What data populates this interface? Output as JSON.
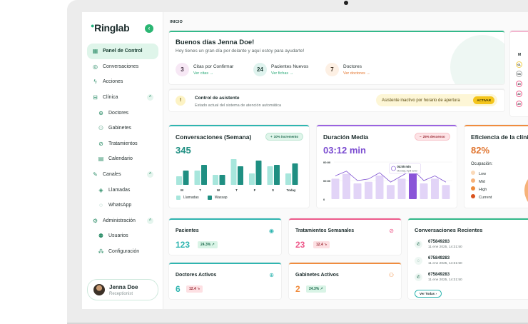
{
  "app": {
    "logo": "Ringlab"
  },
  "breadcrumb": "INICIO",
  "sidebar": {
    "items": [
      {
        "label": "Panel de Control",
        "icon": "grid-icon"
      },
      {
        "label": "Conversaciones",
        "icon": "chat-icon"
      },
      {
        "label": "Acciones",
        "icon": "bolt-icon"
      },
      {
        "label": "Clínica",
        "icon": "clinic-icon"
      },
      {
        "label": "Doctores",
        "icon": "doctor-icon"
      },
      {
        "label": "Gabinetes",
        "icon": "room-icon"
      },
      {
        "label": "Tratamientos",
        "icon": "treatment-icon"
      },
      {
        "label": "Calendario",
        "icon": "calendar-icon"
      },
      {
        "label": "Canales",
        "icon": "channel-icon"
      },
      {
        "label": "Llamadas",
        "icon": "phone-icon"
      },
      {
        "label": "WhatsApp",
        "icon": "whatsapp-icon"
      },
      {
        "label": "Administración",
        "icon": "admin-icon"
      },
      {
        "label": "Usuarios",
        "icon": "users-icon"
      },
      {
        "label": "Configuración",
        "icon": "settings-icon"
      }
    ]
  },
  "user": {
    "name": "Jenna Doe",
    "role": "Receptionist"
  },
  "welcome": {
    "title": "Buenos días Jenna Doe!",
    "subtitle": "Hoy tienes un gran día por delante y aquí estoy para ayudarte!",
    "stats": [
      {
        "value": "3",
        "label": "Citas por Confirmar",
        "link": "Ver citas"
      },
      {
        "value": "24",
        "label": "Pacientes Nuevos",
        "link": "Ver fichas"
      },
      {
        "value": "7",
        "label": "Doctores",
        "link": "Ver doctores"
      }
    ]
  },
  "control": {
    "title": "Control de asistente",
    "subtitle": "Estado actual del sistema de atención automática",
    "status": "Asistente inactivo por horario de apertura",
    "button": "ACTIVAR"
  },
  "calendar_strip": {
    "month": "M",
    "days": [
      "01",
      "08",
      "15",
      "22",
      "29"
    ]
  },
  "conversations": {
    "title": "Conversaciones (Semana)",
    "value": "345",
    "badge": "10% incremento",
    "badge_icon": "plus-icon",
    "legend": [
      "Llamadas",
      "Wassap"
    ],
    "colors": {
      "llamadas": "#a7e6dc",
      "wassap": "#1f8f82"
    }
  },
  "duration": {
    "title": "Duración Media",
    "value": "03:12 min",
    "badge": "25% descenso",
    "badge_icon": "minus-icon",
    "tooltip": {
      "time": "04:55 min",
      "date": "Monday, April 22nd"
    },
    "y_labels": [
      "00:00",
      "00:00",
      "0"
    ]
  },
  "efficiency": {
    "title": "Eficiencia de la clínica",
    "value": "82%",
    "occupation_label": "Ocupación:",
    "legend": [
      "Low",
      "Mid",
      "High",
      "Current"
    ],
    "colors": [
      "#fbd9b8",
      "#f6b27a",
      "#ee8a3a",
      "#d9531e"
    ]
  },
  "chart_data": [
    {
      "type": "bar",
      "title": "Conversaciones (Semana)",
      "categories": [
        "M",
        "T",
        "W",
        "T",
        "F",
        "S",
        "Today"
      ],
      "series": [
        {
          "name": "Llamadas",
          "values": [
            12,
            20,
            14,
            36,
            16,
            26,
            16
          ]
        },
        {
          "name": "Wassap",
          "values": [
            20,
            28,
            14,
            26,
            34,
            28,
            30
          ]
        }
      ]
    },
    {
      "type": "area",
      "title": "Duración Media",
      "x": [
        1,
        2,
        3,
        4,
        5,
        6,
        7,
        8,
        9,
        10,
        11
      ],
      "series": [
        {
          "name": "",
          "values": [
            26,
            32,
            20,
            22,
            30,
            18,
            26,
            34,
            20,
            26,
            18
          ]
        }
      ],
      "highlight_index": 7
    }
  ],
  "metrics": [
    {
      "title": "Pacientes",
      "value": "123",
      "badge": "24.3%",
      "trend": "up",
      "icon": "patient-icon"
    },
    {
      "title": "Tratamientos Semanales",
      "value": "23",
      "badge": "12.4",
      "trend": "down",
      "icon": "treatment-icon"
    },
    {
      "title": "Doctores Activos",
      "value": "6",
      "badge": "12.4",
      "trend": "down",
      "icon": "doctor-icon"
    },
    {
      "title": "Gabinetes Activos",
      "value": "2",
      "badge": "24.3%",
      "trend": "up",
      "icon": "room-icon"
    }
  ],
  "recent": {
    "title": "Conversaciones Recientes",
    "items": [
      {
        "number": "675849283",
        "date": "11 ene 2025, 14:31:50",
        "icon": "phone-icon"
      },
      {
        "number": "675849283",
        "date": "11 ene 2025, 14:31:50",
        "icon": "whatsapp-icon"
      },
      {
        "number": "675849283",
        "date": "11 ene 2025, 14:31:50",
        "icon": "phone-icon"
      }
    ],
    "button": "Ver Todas"
  }
}
